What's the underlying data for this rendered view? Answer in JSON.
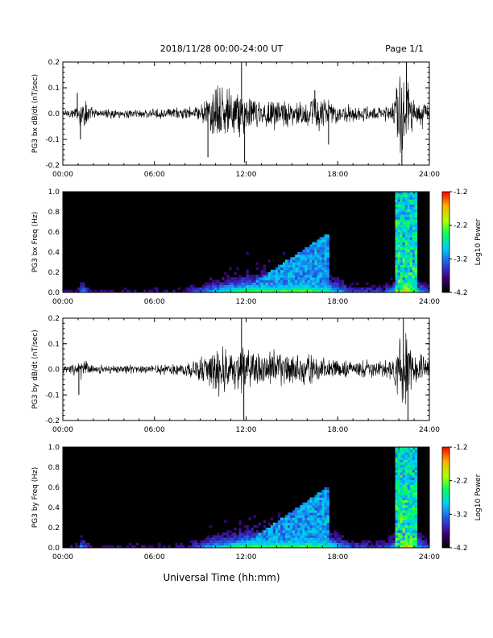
{
  "header": {
    "title": "2018/11/28  00:00-24:00 UT",
    "page": "Page 1/1"
  },
  "xlabel": "Universal Time (hh:mm)",
  "chart_data": [
    {
      "type": "line",
      "ylabel": "PG3 bx dB/dt (nT/sec)",
      "xlim": [
        0,
        24
      ],
      "ylim": [
        -0.2,
        0.2
      ],
      "x_ticks": [
        "00:00",
        "06:00",
        "12:00",
        "18:00",
        "24:00"
      ],
      "y_ticks": [
        "0.2",
        "0.1",
        "0.0",
        "-0.1",
        "-0.2"
      ],
      "envelope": {
        "x": [
          0,
          1,
          1.2,
          2,
          4,
          6,
          8,
          9,
          9.5,
          10,
          10.5,
          11,
          11.5,
          11.8,
          12,
          13,
          14,
          15,
          16,
          16.5,
          17,
          18,
          19,
          20,
          21,
          21.5,
          22,
          22.5,
          23,
          24
        ],
        "amp": [
          0.02,
          0.03,
          0.09,
          0.02,
          0.02,
          0.02,
          0.03,
          0.04,
          0.07,
          0.12,
          0.13,
          0.11,
          0.12,
          0.1,
          0.08,
          0.06,
          0.08,
          0.05,
          0.06,
          0.1,
          0.08,
          0.04,
          0.04,
          0.03,
          0.03,
          0.05,
          0.2,
          0.25,
          0.08,
          0.05
        ]
      },
      "spikes": [
        {
          "x": 0.95,
          "y": 0.08
        },
        {
          "x": 1.15,
          "y": -0.1
        },
        {
          "x": 9.5,
          "y": -0.17
        },
        {
          "x": 11.7,
          "y": 0.2
        },
        {
          "x": 11.9,
          "y": -0.19
        },
        {
          "x": 16.5,
          "y": 0.09
        },
        {
          "x": 17.4,
          "y": -0.12
        },
        {
          "x": 22.2,
          "y": -0.2
        },
        {
          "x": 22.5,
          "y": 0.2
        }
      ]
    },
    {
      "type": "heatmap",
      "ylabel": "PG3 bx Freq (Hz)",
      "xlim": [
        0,
        24
      ],
      "ylim": [
        0,
        1.0
      ],
      "x_ticks": [
        "00:00",
        "06:00",
        "12:00",
        "18:00",
        "24:00"
      ],
      "y_ticks": [
        "1.0",
        "0.8",
        "0.6",
        "0.4",
        "0.2",
        "0.0"
      ],
      "colorbar": {
        "label": "Log10 Power",
        "ticks": [
          "-1.2",
          "-2.2",
          "-3.2",
          "-4.2"
        ],
        "range": [
          -4.2,
          -1.2
        ],
        "colors": [
          "#000000",
          "#3b007a",
          "#2a4fe0",
          "#00c8ff",
          "#00ff60",
          "#b0ff00",
          "#ffb000",
          "#ff0000"
        ]
      },
      "features": [
        {
          "name": "broadband activity",
          "t_start": 9.5,
          "t_end": 17.5,
          "f_top": 0.35
        },
        {
          "name": "rising arc",
          "t_start": 12,
          "t_end": 17.5,
          "f_from": 0.05,
          "f_to": 0.6
        },
        {
          "name": "storm burst",
          "t_start": 21.8,
          "t_end": 23.2,
          "f_top": 1.0
        }
      ]
    },
    {
      "type": "line",
      "ylabel": "PG3 by dB/dt (nT/sec)",
      "xlim": [
        0,
        24
      ],
      "ylim": [
        -0.2,
        0.2
      ],
      "x_ticks": [
        "00:00",
        "06:00",
        "12:00",
        "18:00",
        "24:00"
      ],
      "y_ticks": [
        "0.2",
        "0.1",
        "0.0",
        "-0.1",
        "-0.2"
      ],
      "envelope": {
        "x": [
          0,
          1,
          1.2,
          2,
          4,
          6,
          8,
          9,
          9.5,
          10,
          10.5,
          11,
          11.5,
          11.8,
          12,
          13,
          14,
          15,
          16,
          16.5,
          17,
          18,
          19,
          20,
          21,
          21.5,
          22,
          22.5,
          23,
          24
        ],
        "amp": [
          0.02,
          0.03,
          0.05,
          0.02,
          0.02,
          0.02,
          0.03,
          0.05,
          0.08,
          0.12,
          0.11,
          0.08,
          0.1,
          0.12,
          0.09,
          0.08,
          0.09,
          0.07,
          0.08,
          0.07,
          0.06,
          0.05,
          0.04,
          0.04,
          0.04,
          0.05,
          0.15,
          0.2,
          0.08,
          0.05
        ]
      },
      "spikes": [
        {
          "x": 1.05,
          "y": -0.1
        },
        {
          "x": 11.7,
          "y": 0.2
        },
        {
          "x": 11.85,
          "y": -0.2
        },
        {
          "x": 22.3,
          "y": 0.2
        },
        {
          "x": 22.6,
          "y": -0.2
        }
      ]
    },
    {
      "type": "heatmap",
      "ylabel": "PG3 by Freq (Hz)",
      "xlim": [
        0,
        24
      ],
      "ylim": [
        0,
        1.0
      ],
      "x_ticks": [
        "00:00",
        "06:00",
        "12:00",
        "18:00",
        "24:00"
      ],
      "y_ticks": [
        "1.0",
        "0.8",
        "0.6",
        "0.4",
        "0.2",
        "0.0"
      ],
      "colorbar": {
        "label": "Log10 Power",
        "ticks": [
          "-1.2",
          "-2.2",
          "-3.2",
          "-4.2"
        ],
        "range": [
          -4.2,
          -1.2
        ],
        "colors": [
          "#000000",
          "#3b007a",
          "#2a4fe0",
          "#00c8ff",
          "#00ff60",
          "#b0ff00",
          "#ffb000",
          "#ff0000"
        ]
      },
      "features": [
        {
          "name": "broadband activity",
          "t_start": 9.5,
          "t_end": 17.5,
          "f_top": 0.4
        },
        {
          "name": "rising arc",
          "t_start": 12,
          "t_end": 17.5,
          "f_from": 0.05,
          "f_to": 0.62
        },
        {
          "name": "storm burst",
          "t_start": 21.8,
          "t_end": 23.2,
          "f_top": 1.0
        }
      ]
    }
  ]
}
